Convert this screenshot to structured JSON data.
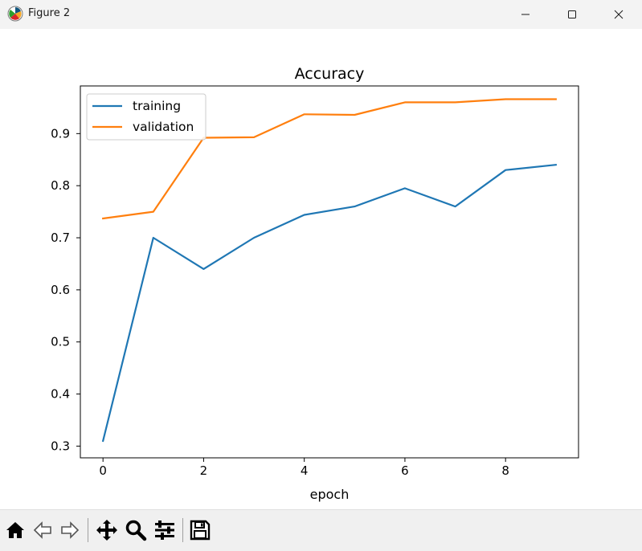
{
  "window": {
    "title": "Figure 2",
    "icon": "matplotlib-icon",
    "controls": [
      "minimize-icon",
      "maximize-icon",
      "close-icon"
    ]
  },
  "toolbar": {
    "tools": [
      {
        "name": "home-button",
        "icon": "home-icon"
      },
      {
        "name": "back-button",
        "icon": "arrow-left-icon"
      },
      {
        "name": "forward-button",
        "icon": "arrow-right-icon"
      },
      {
        "name": "pan-button",
        "icon": "move-icon"
      },
      {
        "name": "zoom-button",
        "icon": "magnifier-icon"
      },
      {
        "name": "configure-subplots-button",
        "icon": "sliders-icon"
      },
      {
        "name": "save-button",
        "icon": "floppy-disk-icon"
      }
    ]
  },
  "chart_data": {
    "type": "line",
    "title": "Accuracy",
    "xlabel": "epoch",
    "ylabel": "",
    "x": [
      0,
      1,
      2,
      3,
      4,
      5,
      6,
      7,
      8,
      9
    ],
    "xlim": [
      -0.45,
      9.45
    ],
    "ylim": [
      0.2775,
      0.9915
    ],
    "xticks": [
      0,
      2,
      4,
      6,
      8
    ],
    "xtick_labels": [
      "0",
      "2",
      "4",
      "6",
      "8"
    ],
    "yticks": [
      0.3,
      0.4,
      0.5,
      0.6,
      0.7,
      0.8,
      0.9
    ],
    "ytick_labels": [
      "0.3",
      "0.4",
      "0.5",
      "0.6",
      "0.7",
      "0.8",
      "0.9"
    ],
    "grid": false,
    "legend_position": "top-left",
    "series": [
      {
        "name": "training",
        "color": "#1f77b4",
        "values": [
          0.31,
          0.7,
          0.64,
          0.7,
          0.744,
          0.76,
          0.795,
          0.76,
          0.83,
          0.84
        ]
      },
      {
        "name": "validation",
        "color": "#ff7f0e",
        "values": [
          0.737,
          0.75,
          0.892,
          0.893,
          0.937,
          0.936,
          0.96,
          0.96,
          0.966,
          0.966
        ]
      }
    ]
  }
}
